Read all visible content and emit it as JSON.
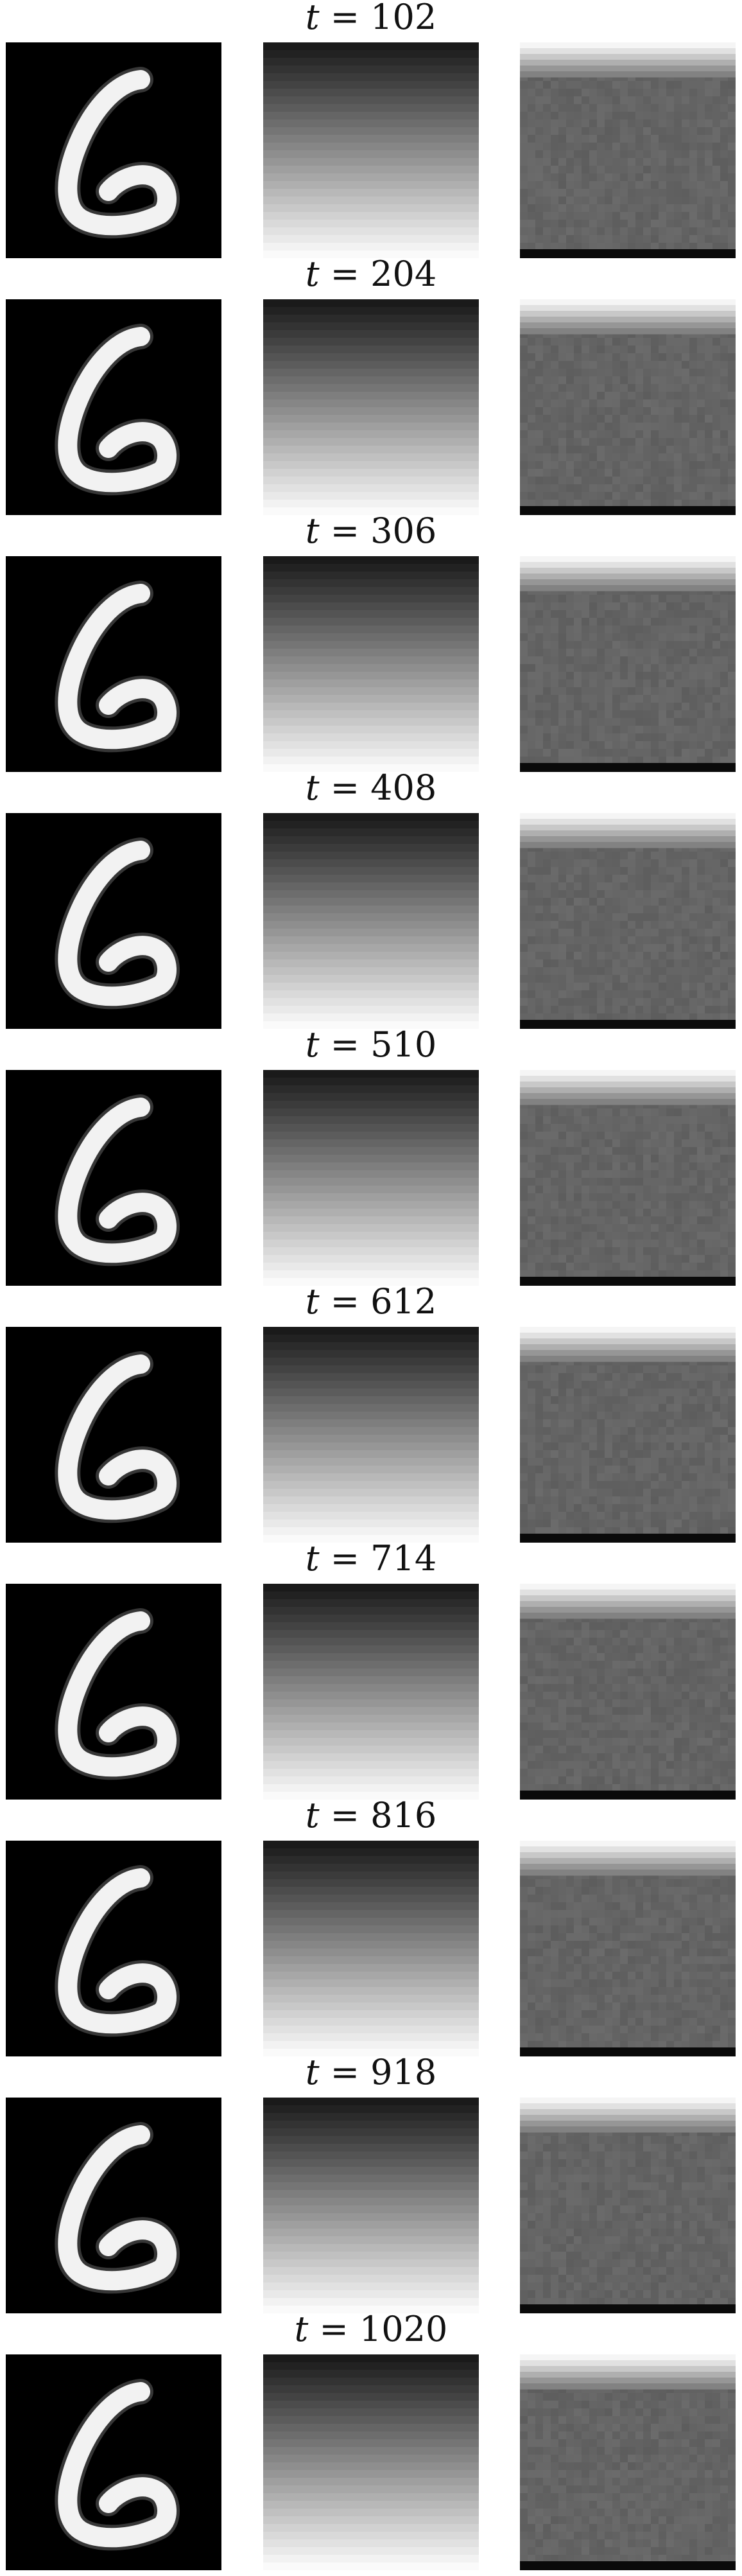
{
  "rows": [
    {
      "t_label": "t",
      "t_value": "102"
    },
    {
      "t_label": "t",
      "t_value": "204"
    },
    {
      "t_label": "t",
      "t_value": "306"
    },
    {
      "t_label": "t",
      "t_value": "408"
    },
    {
      "t_label": "t",
      "t_value": "510"
    },
    {
      "t_label": "t",
      "t_value": "612"
    },
    {
      "t_label": "t",
      "t_value": "714"
    },
    {
      "t_label": "t",
      "t_value": "816"
    },
    {
      "t_label": "t",
      "t_value": "918"
    },
    {
      "t_label": "t",
      "t_value": "1020"
    }
  ],
  "panels": {
    "digit": {
      "depicts": "handwritten digit 6",
      "background": "#000000",
      "stroke": "#f2f2f2"
    },
    "ramp": {
      "top_color": "#1a1a1a",
      "bottom_color": "#fafafa",
      "bands": 28
    },
    "sample": {
      "base": "#6a6a6a",
      "top_light": "#f0f0f0",
      "bottom_dark": "#0a0a0a"
    }
  }
}
